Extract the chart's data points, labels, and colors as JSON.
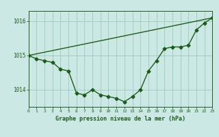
{
  "x_hours": [
    0,
    1,
    2,
    3,
    4,
    5,
    6,
    7,
    8,
    9,
    10,
    11,
    12,
    13,
    14,
    15,
    16,
    17,
    18,
    19,
    20,
    21,
    22,
    23
  ],
  "pressure": [
    1015.0,
    1014.9,
    1014.85,
    1014.8,
    1014.6,
    1014.55,
    1013.9,
    1013.85,
    1014.0,
    1013.85,
    1013.8,
    1013.75,
    1013.65,
    1013.8,
    1014.0,
    1014.55,
    1014.85,
    1015.2,
    1015.25,
    1015.25,
    1015.3,
    1015.75,
    1015.95,
    1016.1
  ],
  "trend_x": [
    0,
    23
  ],
  "trend_y": [
    1015.0,
    1016.1
  ],
  "bg_color": "#cce8e4",
  "line_color": "#1a5c1a",
  "grid_color": "#99ccbb",
  "ylabel_ticks": [
    1014,
    1015,
    1016
  ],
  "xlabel": "Graphe pression niveau de la mer (hPa)",
  "xlim": [
    0,
    23
  ],
  "ylim": [
    1013.5,
    1016.3
  ],
  "marker": "D",
  "marker_size": 2.5,
  "line_width": 1.0,
  "fig_width": 3.2,
  "fig_height": 2.0,
  "dpi": 100
}
